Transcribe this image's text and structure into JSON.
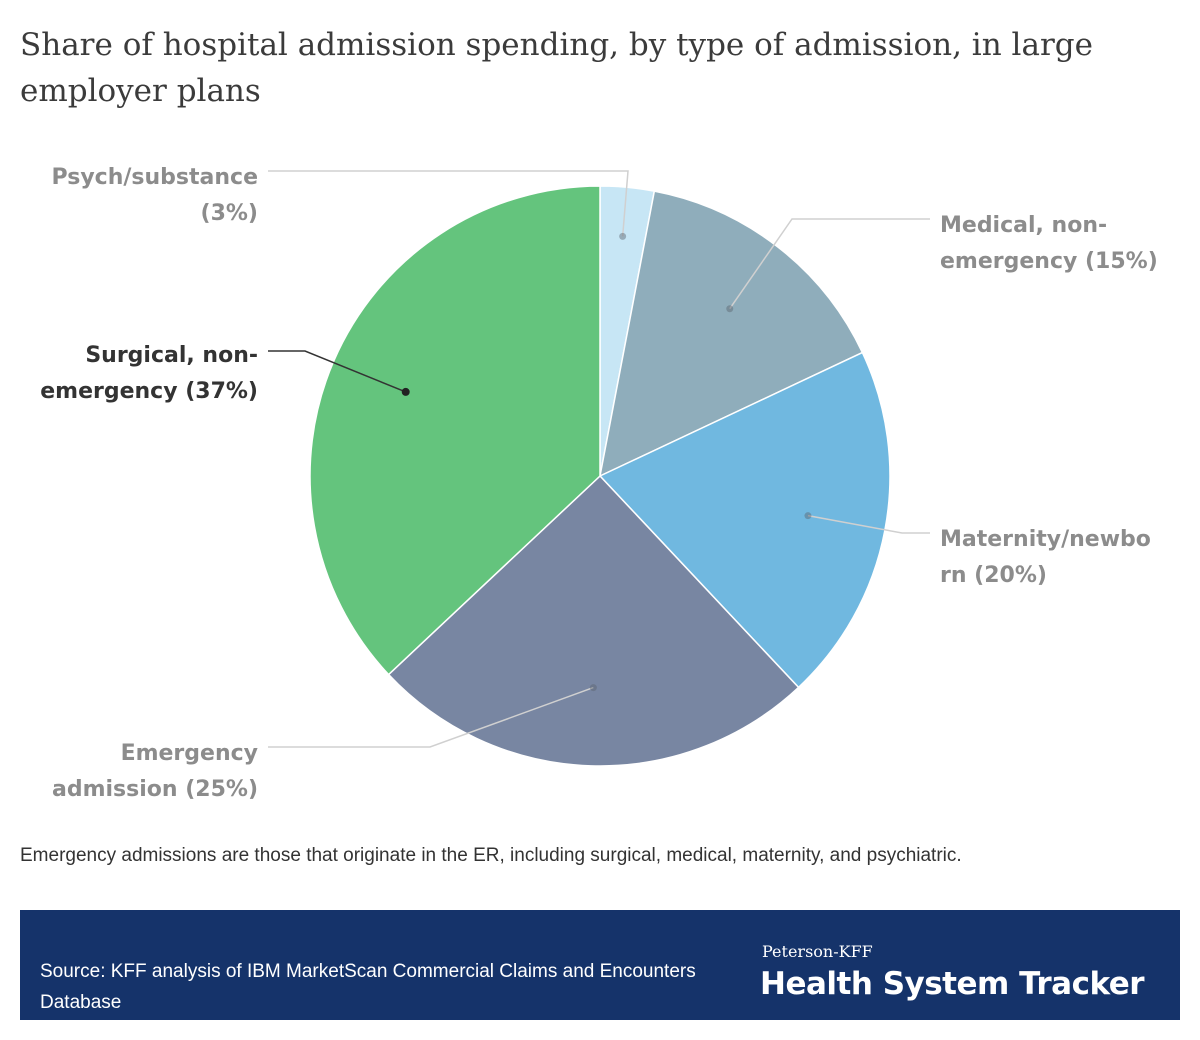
{
  "title": "Share of hospital admission spending, by type of admission, in large employer plans",
  "note": "Emergency admissions are those that originate in the ER, including surgical, medical, maternity, and psychiatric.",
  "footer": {
    "source": "Source: KFF analysis of IBM MarketScan Commercial Claims and Encounters Database",
    "brand_small": "Peterson-KFF",
    "brand_big": "Health System Tracker"
  },
  "colors": {
    "footer_bg": "#15336a",
    "label_gray": "#8c8c8c",
    "label_highlight": "#333333"
  },
  "chart_data": {
    "type": "pie",
    "start_angle": "12 o'clock",
    "direction": "clockwise",
    "slices": [
      {
        "name": "Psych/substance",
        "value": 3,
        "label_lines": [
          "Psych/substance",
          "(3%)"
        ],
        "color": "#c7e6f5",
        "highlight": false
      },
      {
        "name": "Medical, non-emergency",
        "value": 15,
        "label_lines": [
          "Medical, non-",
          "emergency (15%)"
        ],
        "color": "#8fadbb",
        "highlight": false
      },
      {
        "name": "Maternity/newborn",
        "value": 20,
        "label_lines": [
          "Maternity/newbo",
          "rn (20%)"
        ],
        "color": "#70b8e0",
        "highlight": false
      },
      {
        "name": "Emergency admission",
        "value": 25,
        "label_lines": [
          "Emergency",
          "admission (25%)"
        ],
        "color": "#7886a2",
        "highlight": false
      },
      {
        "name": "Surgical, non-emergency",
        "value": 37,
        "label_lines": [
          "Surgical, non-",
          "emergency (37%)"
        ],
        "color": "#64c47d",
        "highlight": true
      }
    ]
  }
}
